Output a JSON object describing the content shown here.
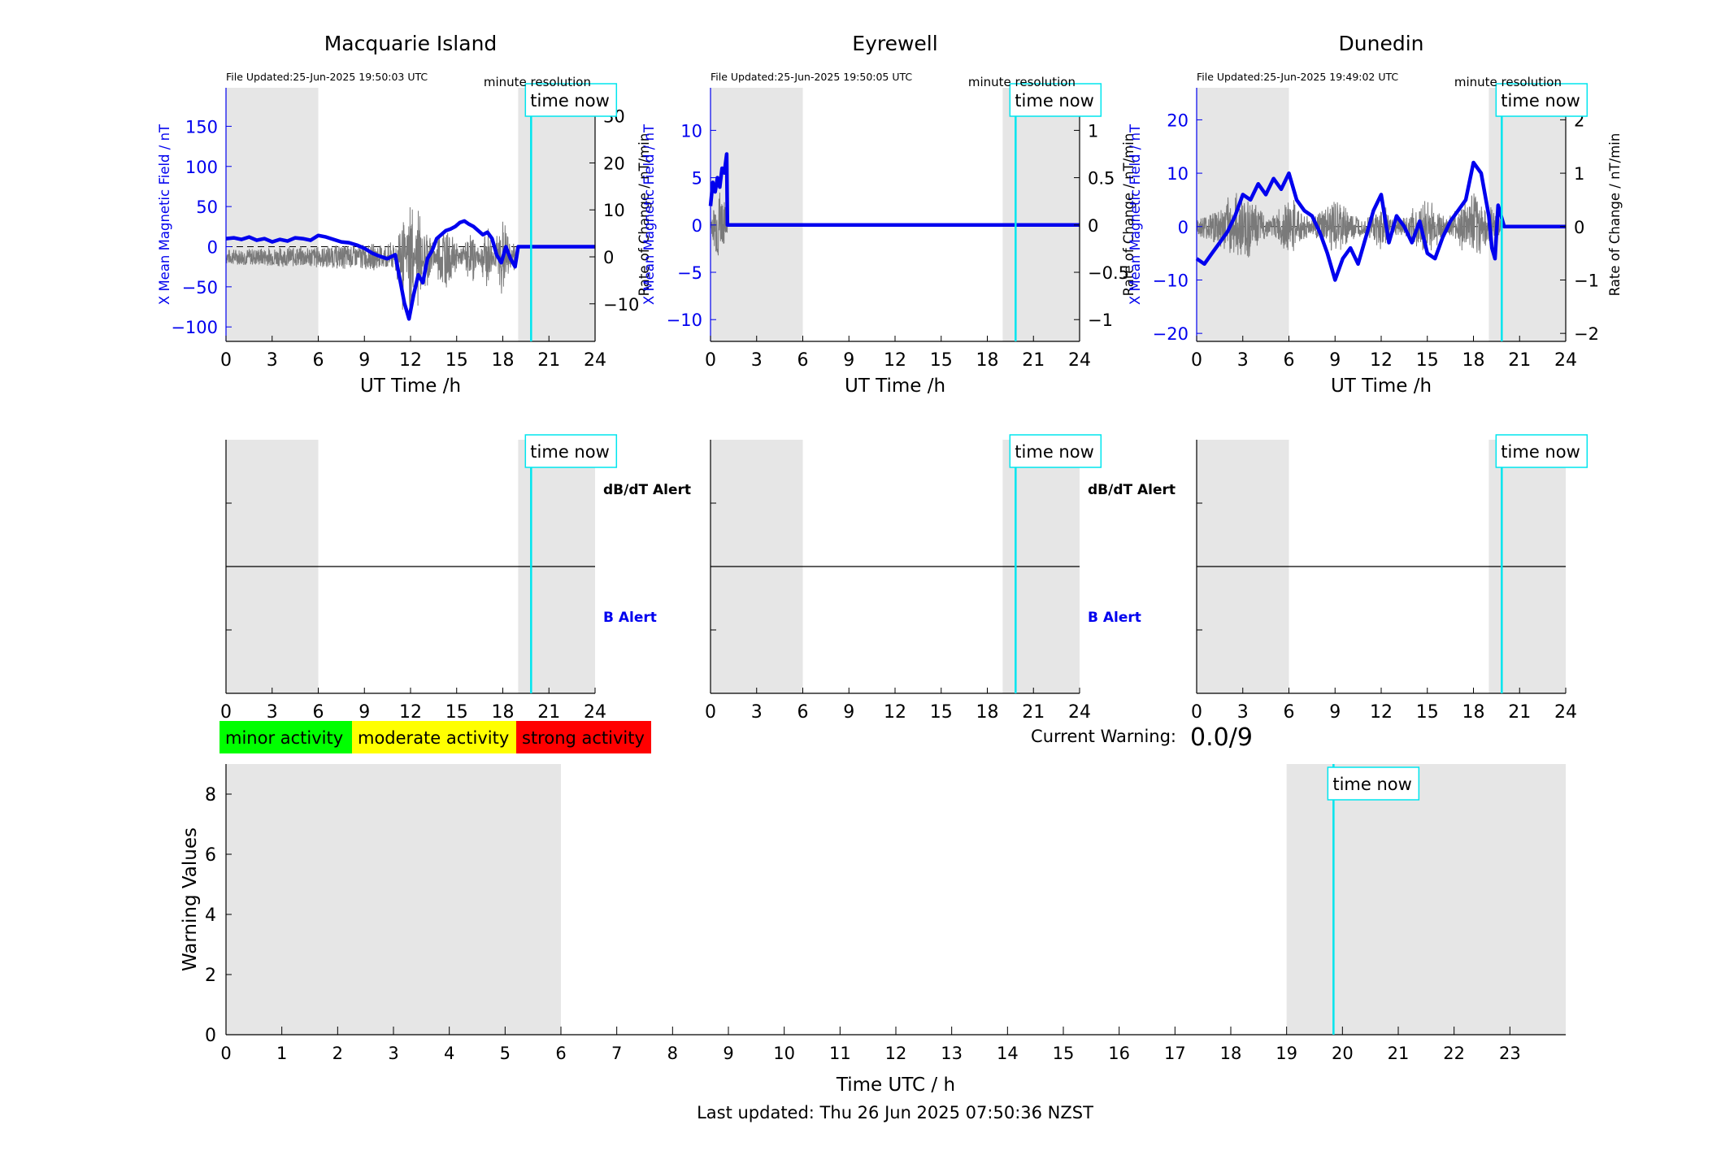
{
  "chart_data": [
    {
      "type": "line",
      "title": "Macquarie Island",
      "file_updated": "File Updated:25-Jun-2025 19:50:03 UTC",
      "resolution": "minute resolution",
      "xlabel": "UT Time /h",
      "ylabel_left": "X Mean Magnetic Field / nT",
      "ylabel_right": "Rate of Change / nT/min",
      "xlim": [
        0,
        24
      ],
      "xticks": [
        0,
        3,
        6,
        9,
        12,
        15,
        18,
        21,
        24
      ],
      "ylim_left": [
        -118,
        198
      ],
      "yticks_left": [
        -100,
        -50,
        0,
        50,
        100,
        150
      ],
      "ylim_right": [
        -18,
        36
      ],
      "yticks_right": [
        -10,
        0,
        10,
        20,
        30
      ],
      "shaded": [
        [
          0,
          6
        ],
        [
          19,
          24
        ]
      ],
      "time_now": 19.84,
      "time_now_label": "time now",
      "series": [
        {
          "axis": "left",
          "color": "#0000ee",
          "x": [
            0,
            0.5,
            1,
            1.5,
            2,
            2.5,
            3,
            3.5,
            4,
            4.5,
            5,
            5.5,
            6,
            6.5,
            7,
            7.5,
            8,
            8.5,
            9,
            9.5,
            10,
            10.5,
            11,
            11.3,
            11.6,
            11.9,
            12.2,
            12.5,
            12.8,
            13.1,
            13.4,
            13.7,
            14,
            14.3,
            14.6,
            14.9,
            15.2,
            15.5,
            15.8,
            16.1,
            16.4,
            16.7,
            17,
            17.3,
            17.6,
            17.9,
            18.2,
            18.5,
            18.8,
            19,
            19.5,
            20,
            21,
            22,
            23,
            24
          ],
          "y": [
            10,
            11,
            9,
            12,
            8,
            10,
            6,
            9,
            7,
            11,
            10,
            8,
            14,
            12,
            9,
            6,
            5,
            2,
            -2,
            -8,
            -12,
            -15,
            -10,
            -40,
            -70,
            -90,
            -60,
            -35,
            -45,
            -15,
            -5,
            10,
            15,
            20,
            22,
            25,
            30,
            32,
            28,
            25,
            20,
            15,
            18,
            10,
            -10,
            -20,
            0,
            -15,
            -25,
            0,
            0,
            0,
            0,
            0,
            0,
            0
          ]
        },
        {
          "axis": "right",
          "color": "#7a7a7a",
          "noisy": true,
          "x": [
            0,
            11,
            11.5,
            12,
            12.5,
            13,
            14,
            16,
            17,
            18,
            18.8
          ],
          "y": [
            0,
            1,
            8,
            -12,
            10,
            -6,
            5,
            -3,
            4,
            -6,
            2
          ]
        }
      ]
    },
    {
      "type": "line",
      "title": "Eyrewell",
      "file_updated": "File Updated:25-Jun-2025 19:50:05 UTC",
      "resolution": "minute resolution",
      "xlabel": "UT Time /h",
      "ylabel_left": "X Mean Magnetic Field / nT",
      "ylabel_right": "Rate of Change / nT/min",
      "xlim": [
        0,
        24
      ],
      "xticks": [
        0,
        3,
        6,
        9,
        12,
        15,
        18,
        21,
        24
      ],
      "ylim_left": [
        -12.3,
        14.5
      ],
      "yticks_left": [
        -10,
        -5,
        0,
        5,
        10
      ],
      "ylim_right": [
        -1.23,
        1.45
      ],
      "yticks_right": [
        -1,
        -0.5,
        0,
        0.5,
        1
      ],
      "shaded": [
        [
          0,
          6
        ],
        [
          19,
          24
        ]
      ],
      "time_now": 19.84,
      "time_now_label": "time now",
      "series": [
        {
          "axis": "left",
          "color": "#0000ee",
          "x": [
            0,
            0.15,
            0.3,
            0.45,
            0.6,
            0.75,
            0.9,
            1.05,
            1.1,
            1.2,
            3,
            6,
            12,
            18,
            24
          ],
          "y": [
            2,
            4.5,
            3.5,
            5,
            4,
            6,
            5.5,
            7.5,
            0,
            0,
            0,
            0,
            0,
            0,
            0
          ]
        },
        {
          "axis": "right",
          "color": "#7a7a7a",
          "noisy": true,
          "x": [
            0,
            0.6,
            1.1
          ],
          "y": [
            0,
            -0.3,
            0
          ]
        }
      ]
    },
    {
      "type": "line",
      "title": "Dunedin",
      "file_updated": "File Updated:25-Jun-2025 19:49:02 UTC",
      "resolution": "minute resolution",
      "xlabel": "UT Time /h",
      "ylabel_left": "X Mean Magnetic Field / nT",
      "ylabel_right": "Rate of Change / nT/min",
      "xlim": [
        0,
        24
      ],
      "xticks": [
        0,
        3,
        6,
        9,
        12,
        15,
        18,
        21,
        24
      ],
      "ylim_left": [
        -21.5,
        26
      ],
      "yticks_left": [
        -20,
        -10,
        0,
        10,
        20
      ],
      "ylim_right": [
        -2.15,
        2.6
      ],
      "yticks_right": [
        -2,
        -1,
        0,
        1,
        2
      ],
      "shaded": [
        [
          0,
          6
        ],
        [
          19,
          24
        ]
      ],
      "time_now": 19.84,
      "time_now_label": "time now",
      "series": [
        {
          "axis": "left",
          "color": "#0000ee",
          "x": [
            0,
            0.5,
            1,
            1.5,
            2,
            2.5,
            3,
            3.5,
            4,
            4.5,
            5,
            5.5,
            6,
            6.5,
            7,
            7.5,
            8,
            8.5,
            9,
            9.5,
            10,
            10.5,
            11,
            11.5,
            12,
            12.5,
            13,
            13.5,
            14,
            14.5,
            15,
            15.5,
            16,
            16.5,
            17,
            17.5,
            18,
            18.5,
            19,
            19.2,
            19.4,
            19.6,
            20,
            21,
            22,
            23,
            24
          ],
          "y": [
            -6,
            -7,
            -5,
            -3,
            -1,
            2,
            6,
            5,
            8,
            6,
            9,
            7,
            10,
            5,
            3,
            2,
            -1,
            -5,
            -10,
            -6,
            -4,
            -7,
            -2,
            3,
            6,
            -3,
            2,
            0,
            -3,
            1,
            -5,
            -6,
            -2,
            1,
            3,
            5,
            12,
            10,
            2,
            -4,
            -6,
            4,
            0,
            0,
            0,
            0,
            0
          ]
        },
        {
          "axis": "right",
          "color": "#7a7a7a",
          "noisy": true,
          "x": [
            0,
            3,
            6,
            9,
            12,
            15,
            18,
            19.8
          ],
          "y": [
            0,
            0.4,
            -0.3,
            0.3,
            -0.2,
            0.3,
            -0.4,
            0
          ]
        }
      ]
    },
    {
      "type": "line",
      "alert_panel": true,
      "xlim": [
        0,
        24
      ],
      "xticks": [
        0,
        3,
        6,
        9,
        12,
        15,
        18,
        21,
        24
      ],
      "shaded": [
        [
          0,
          6
        ],
        [
          19,
          24
        ]
      ],
      "time_now": 19.84,
      "time_now_label": "time now",
      "dbdt_label": "dB/dT Alert",
      "b_label": "B Alert"
    },
    {
      "type": "line",
      "alert_panel": true,
      "xlim": [
        0,
        24
      ],
      "xticks": [
        0,
        3,
        6,
        9,
        12,
        15,
        18,
        21,
        24
      ],
      "shaded": [
        [
          0,
          6
        ],
        [
          19,
          24
        ]
      ],
      "time_now": 19.84,
      "time_now_label": "time now",
      "dbdt_label": "dB/dT Alert",
      "b_label": "B Alert"
    },
    {
      "type": "line",
      "alert_panel": true,
      "xlim": [
        0,
        24
      ],
      "xticks": [
        0,
        3,
        6,
        9,
        12,
        15,
        18,
        21,
        24
      ],
      "shaded": [
        [
          0,
          6
        ],
        [
          19,
          24
        ]
      ],
      "time_now": 19.84,
      "time_now_label": "time now"
    },
    {
      "type": "bar",
      "xlabel": "Time UTC / h",
      "ylabel": "Warning Values",
      "xlim": [
        0,
        24
      ],
      "xticks": [
        0,
        1,
        2,
        3,
        4,
        5,
        6,
        7,
        8,
        9,
        10,
        11,
        12,
        13,
        14,
        15,
        16,
        17,
        18,
        19,
        20,
        21,
        22,
        23
      ],
      "ylim": [
        0,
        9
      ],
      "yticks": [
        0,
        2,
        4,
        6,
        8
      ],
      "shaded": [
        [
          0,
          6
        ],
        [
          19,
          24
        ]
      ],
      "time_now": 19.84,
      "time_now_label": "time now",
      "values": []
    }
  ],
  "legend": {
    "items": [
      {
        "label": "minor activity",
        "color": "#00ff00"
      },
      {
        "label": "moderate activity",
        "color": "#ffff00"
      },
      {
        "label": "strong activity",
        "color": "#ff0000"
      }
    ]
  },
  "warning": {
    "label": "Current Warning:",
    "value": "0.0/9"
  },
  "footer": {
    "last_updated": "Last updated: Thu 26 Jun 2025 07:50:36 NZST"
  }
}
